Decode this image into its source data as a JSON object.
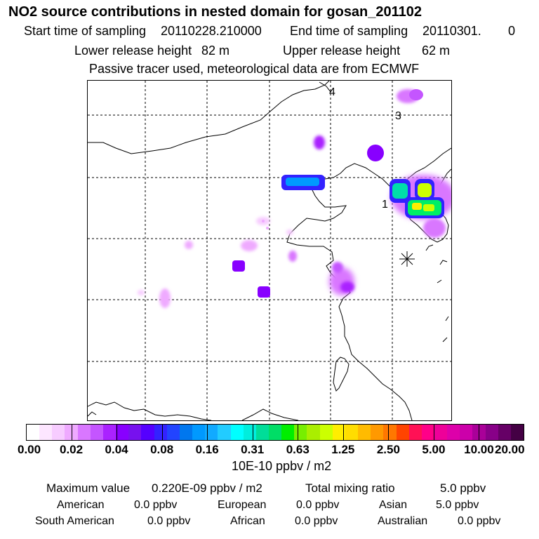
{
  "title": "NO2 source contributions in nested domain for gosan_201102",
  "sampling": {
    "start_label": "Start time of sampling",
    "start_value": "20110228.210000",
    "end_label": "End time of sampling",
    "end_value": "20110301.",
    "end_suffix": "0"
  },
  "release": {
    "lower_label": "Lower release height",
    "lower_value": "82 m",
    "upper_label": "Upper release height",
    "upper_value": "62 m"
  },
  "tracer_note": "Passive tracer used, meteorological data are from ECMWF",
  "map": {
    "markers": [
      "1",
      "3",
      "4"
    ],
    "receptor_symbol": "asterisk"
  },
  "colorbar": {
    "ticks": [
      "0.00",
      "0.02",
      "0.04",
      "0.08",
      "0.16",
      "0.31",
      "0.63",
      "1.25",
      "2.50",
      "5.00",
      "10.00",
      "20.00"
    ],
    "colors": [
      "#ffffff",
      "#fde6ff",
      "#f7ccff",
      "#efaaff",
      "#d977ff",
      "#c455ff",
      "#aa22ff",
      "#8800ff",
      "#7711ee",
      "#5500ff",
      "#3322ff",
      "#2244ff",
      "#0077ee",
      "#0099ff",
      "#11aaff",
      "#22ccff",
      "#00ffff",
      "#00eedd",
      "#00dd99",
      "#00dd66",
      "#00ee00",
      "#77ee00",
      "#aaee00",
      "#ccff00",
      "#ffee00",
      "#ffdd00",
      "#ffbb00",
      "#ff9900",
      "#ff7700",
      "#ff4400",
      "#ff1155",
      "#ff0088",
      "#ee0099",
      "#dd00aa",
      "#cc00aa",
      "#aa0099",
      "#880088",
      "#660066",
      "#440044"
    ],
    "unit": "10E-10 ppbv / m2"
  },
  "summary": {
    "max_label": "Maximum value",
    "max_value": "0.220E-09 ppbv / m2",
    "total_label": "Total mixing ratio",
    "total_value": "5.0 ppbv"
  },
  "regions": [
    {
      "name": "American",
      "value": "0.0 ppbv"
    },
    {
      "name": "European",
      "value": "0.0 ppbv"
    },
    {
      "name": "Asian",
      "value": "5.0 ppbv"
    },
    {
      "name": "South American",
      "value": "0.0 ppbv"
    },
    {
      "name": "African",
      "value": "0.0 ppbv"
    },
    {
      "name": "Australian",
      "value": "0.0 ppbv"
    }
  ]
}
